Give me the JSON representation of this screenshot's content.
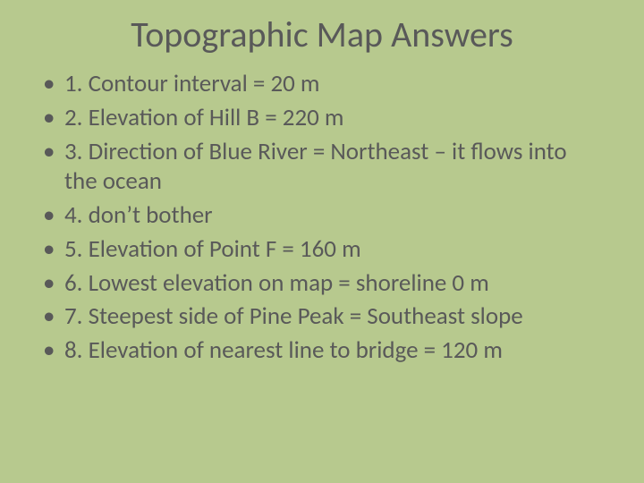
{
  "slide": {
    "background_color": "#b7c98e",
    "text_color": "#595959",
    "title": "Topographic Map Answers",
    "title_fontsize": 40,
    "bullet_fontsize": 27,
    "bullets": [
      "1. Contour interval = 20 m",
      "2. Elevation of Hill B = 220 m",
      "3. Direction of Blue River = Northeast – it flows into the ocean",
      "4. don’t bother",
      "5. Elevation of Point F = 160 m",
      "6. Lowest elevation on map = shoreline 0 m",
      "7. Steepest side of Pine Peak = Southeast slope",
      "8. Elevation of nearest line to bridge = 120 m"
    ]
  }
}
